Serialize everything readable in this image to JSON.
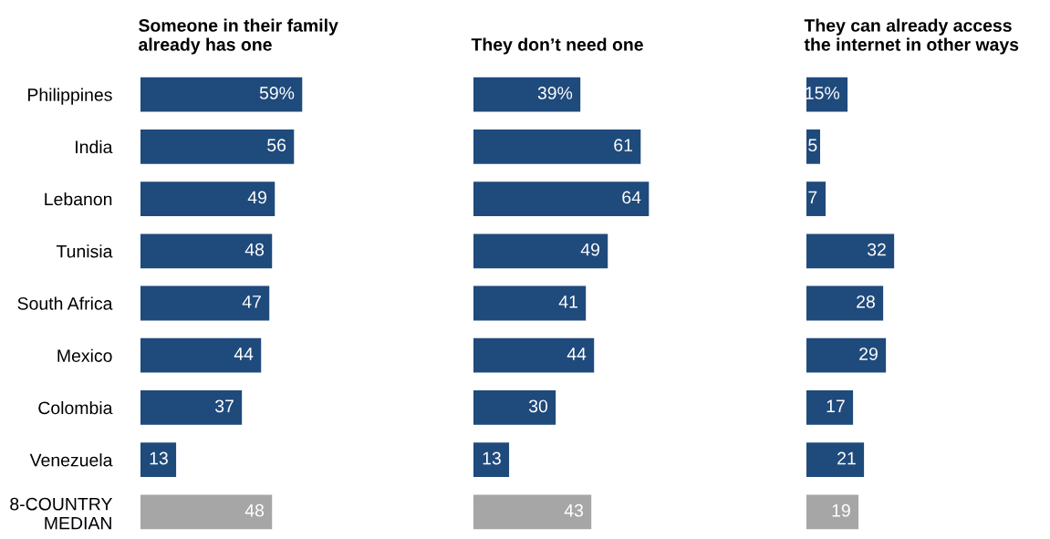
{
  "chart_data": [
    {
      "type": "bar",
      "orientation": "horizontal",
      "title": "Someone in their family\nalready has one",
      "tick_labels": "y",
      "categories": [
        "Philippines",
        "India",
        "Lebanon",
        "Tunisia",
        "South Africa",
        "Mexico",
        "Colombia",
        "Venezuela",
        "8-COUNTRY\nMEDIAN"
      ],
      "values": [
        59,
        56,
        49,
        48,
        47,
        44,
        37,
        13,
        48
      ],
      "value_labels": [
        "59%",
        "56",
        "49",
        "48",
        "47",
        "44",
        "37",
        "13",
        "48"
      ],
      "colors": [
        "#1f4a7c",
        "#1f4a7c",
        "#1f4a7c",
        "#1f4a7c",
        "#1f4a7c",
        "#1f4a7c",
        "#1f4a7c",
        "#1f4a7c",
        "#a6a6a6"
      ]
    },
    {
      "type": "bar",
      "orientation": "horizontal",
      "title": "They don’t need one",
      "tick_labels": false,
      "values": [
        39,
        61,
        64,
        49,
        41,
        44,
        30,
        13,
        43
      ],
      "value_labels": [
        "39%",
        "61",
        "64",
        "49",
        "41",
        "44",
        "30",
        "13",
        "43"
      ],
      "colors": [
        "#1f4a7c",
        "#1f4a7c",
        "#1f4a7c",
        "#1f4a7c",
        "#1f4a7c",
        "#1f4a7c",
        "#1f4a7c",
        "#1f4a7c",
        "#a6a6a6"
      ]
    },
    {
      "type": "bar",
      "orientation": "horizontal",
      "title": "They can already access\nthe internet in other ways",
      "tick_labels": false,
      "values": [
        15,
        5,
        7,
        32,
        28,
        29,
        17,
        21,
        19
      ],
      "value_labels": [
        "15%",
        "5",
        "7",
        "32",
        "28",
        "29",
        "17",
        "21",
        "19"
      ],
      "colors": [
        "#1f4a7c",
        "#1f4a7c",
        "#1f4a7c",
        "#1f4a7c",
        "#1f4a7c",
        "#1f4a7c",
        "#1f4a7c",
        "#1f4a7c",
        "#a6a6a6"
      ]
    }
  ]
}
